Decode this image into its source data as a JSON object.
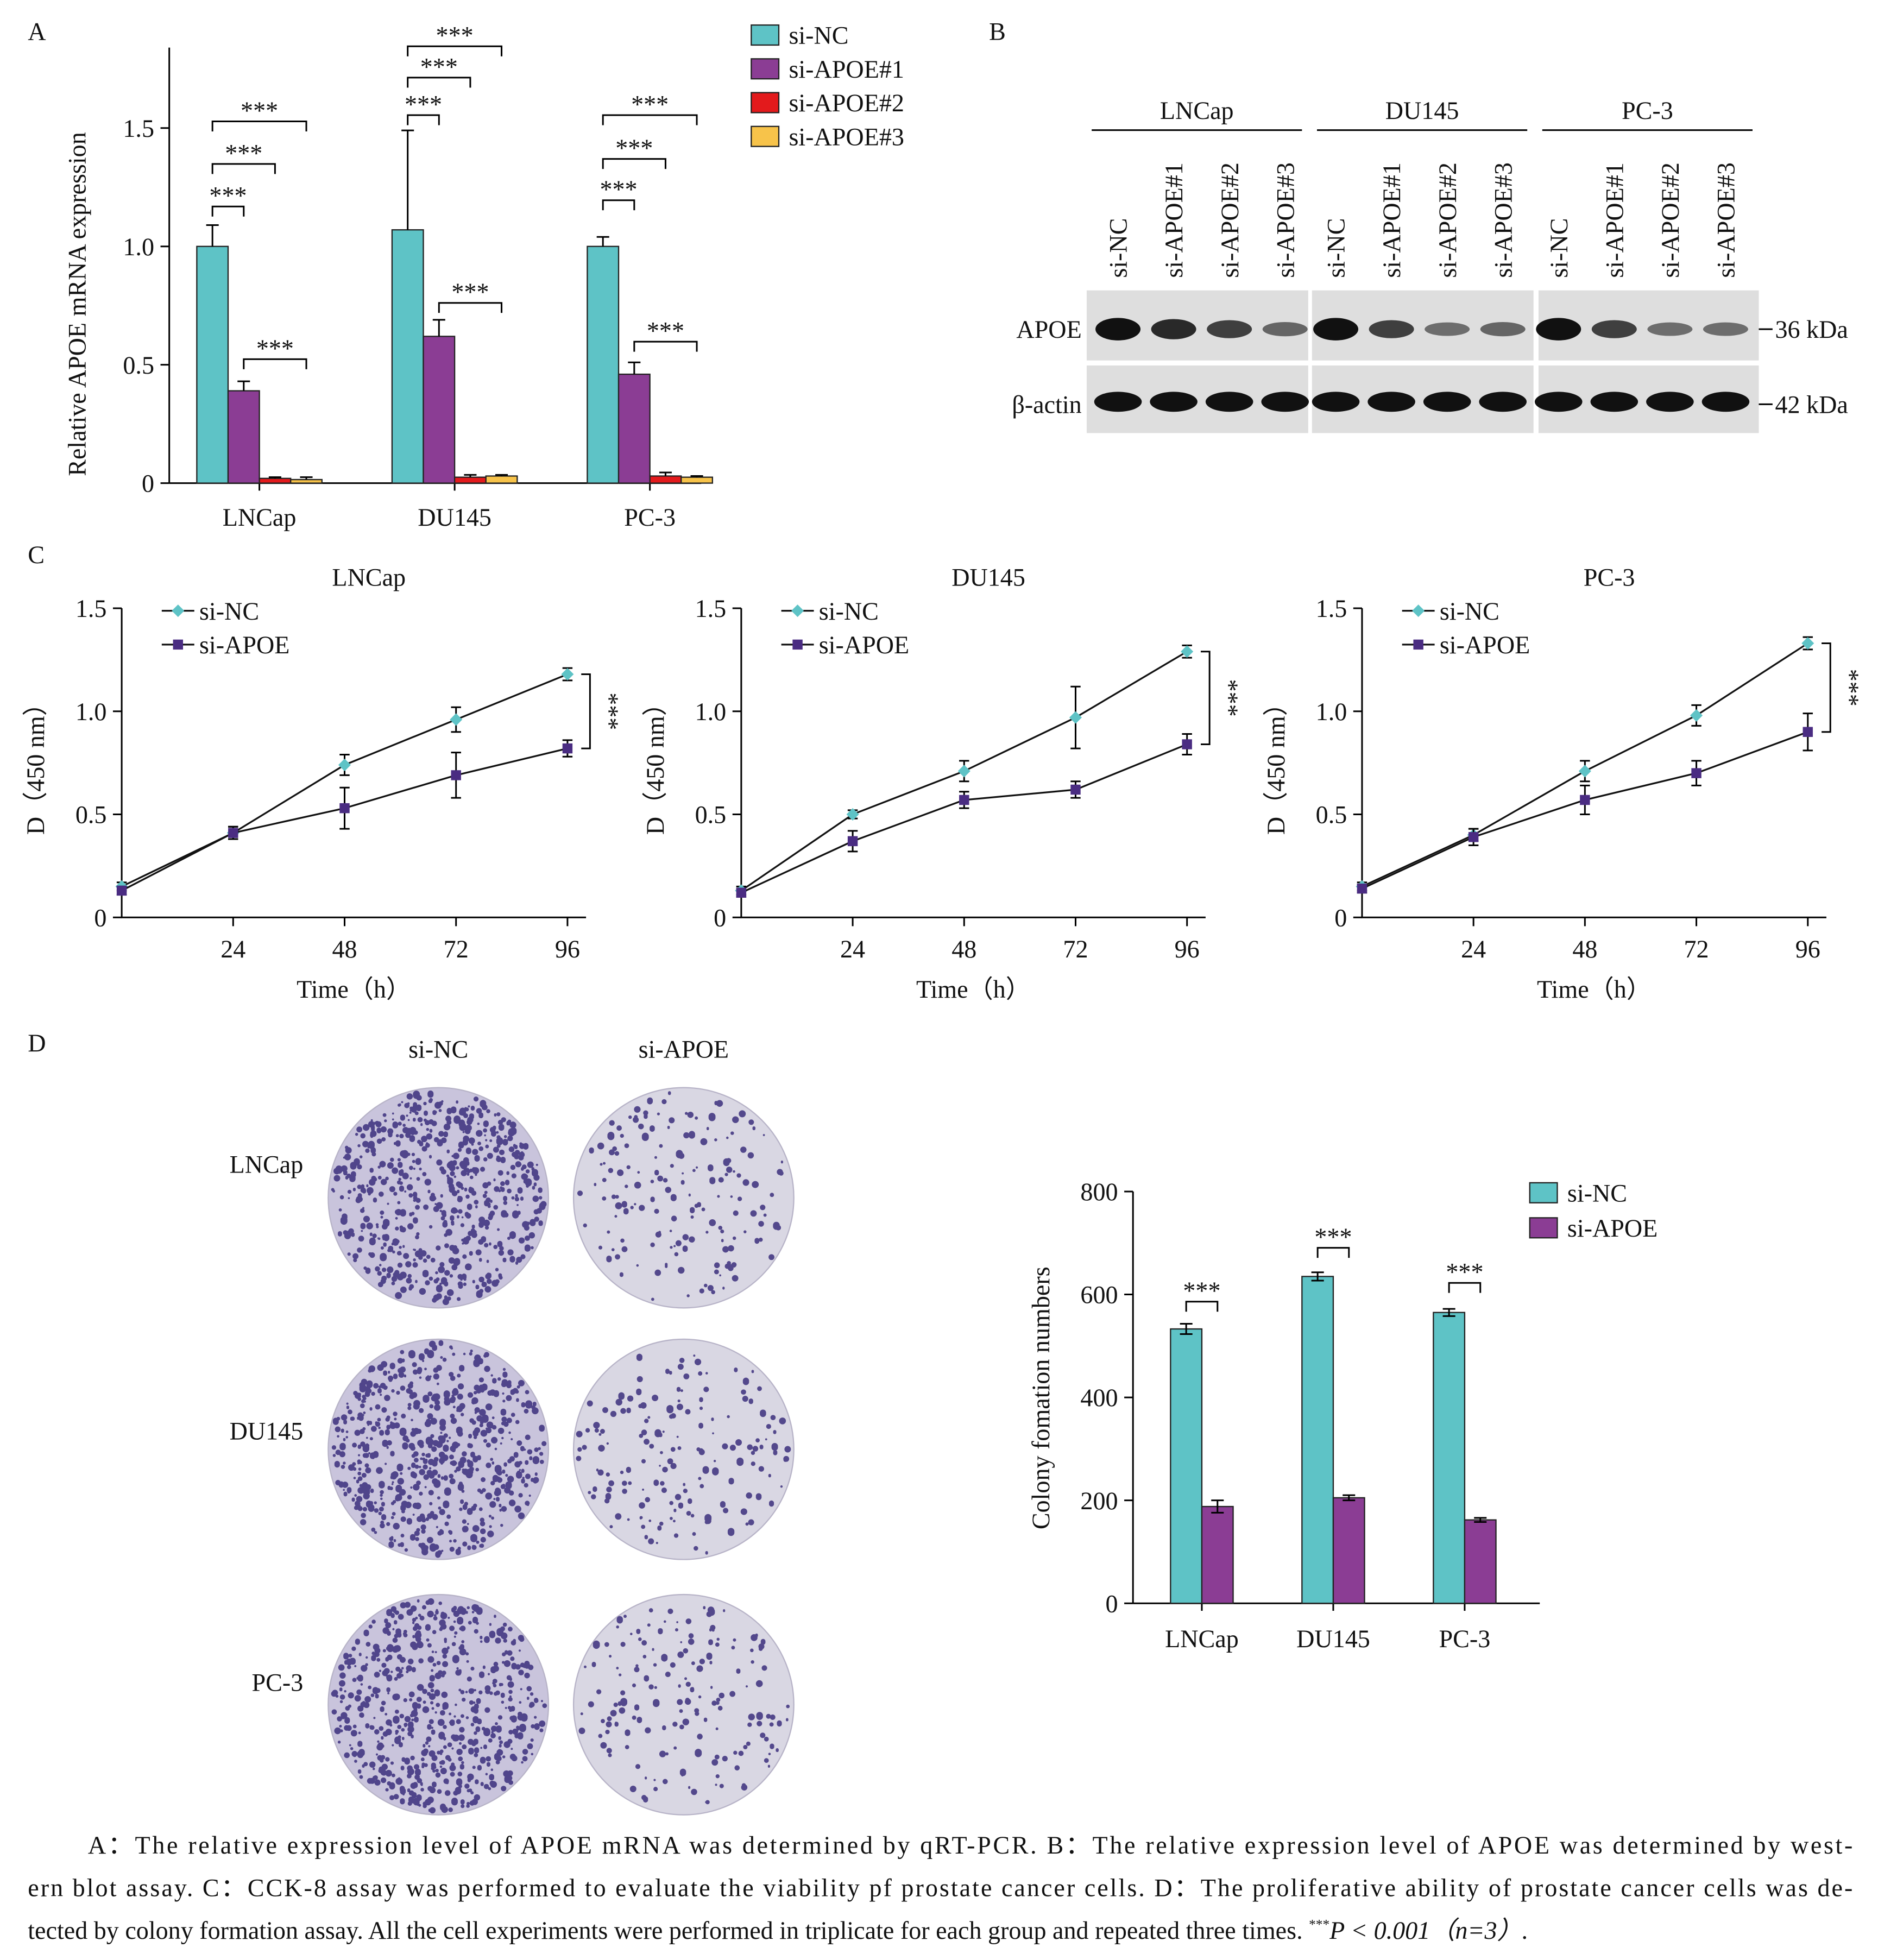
{
  "panel_labels": [
    "A",
    "B",
    "C",
    "D"
  ],
  "chart_data": [
    {
      "type": "bar",
      "y_label": "Relative APOE mRNA expression",
      "categories": [
        "LNCap",
        "DU145",
        "PC-3"
      ],
      "series": [
        {
          "name": "si-NC",
          "color": "#5ec3c6",
          "values": [
            1.0,
            1.07,
            1.0
          ],
          "errors": [
            0.09,
            0.42,
            0.04
          ]
        },
        {
          "name": "si-APOE#1",
          "color": "#8b3d94",
          "values": [
            0.39,
            0.62,
            0.46
          ],
          "errors": [
            0.04,
            0.07,
            0.05
          ]
        },
        {
          "name": "si-APOE#2",
          "color": "#e31a1c",
          "values": [
            0.02,
            0.025,
            0.03
          ],
          "errors": [
            0.005,
            0.01,
            0.015
          ]
        },
        {
          "name": "si-APOE#3",
          "color": "#f7c34a",
          "values": [
            0.015,
            0.03,
            0.025
          ],
          "errors": [
            0.01,
            0.005,
            0.005
          ]
        }
      ],
      "ylim": [
        0,
        1.84
      ],
      "yticks": [
        0,
        0.5,
        {
          "value": 1,
          "label": "1.0"
        },
        1.5
      ],
      "annotations": [
        "***",
        "***",
        "***",
        "***",
        "***",
        "***",
        "***",
        "***",
        "***",
        "***",
        "***",
        "***"
      ]
    },
    {
      "type": "line",
      "title": "LNCap",
      "x_label": "Time（h）",
      "y_label": "D（450 nm）",
      "x": [
        0,
        24,
        48,
        72,
        96
      ],
      "series": [
        {
          "name": "si-NC",
          "color": "#5ec3c6",
          "values": [
            0.15,
            0.41,
            0.74,
            0.96,
            1.18
          ],
          "errors": [
            0.02,
            0.03,
            0.05,
            0.06,
            0.03
          ]
        },
        {
          "name": "si-APOE",
          "color": "#4a2c82",
          "values": [
            0.13,
            0.41,
            0.53,
            0.69,
            0.82
          ],
          "errors": [
            0.02,
            0.03,
            0.1,
            0.11,
            0.04
          ]
        }
      ],
      "xlim": [
        0,
        100
      ],
      "xticks": [
        24,
        48,
        72,
        96
      ],
      "ylim": [
        0,
        1.5
      ],
      "yticks": [
        0,
        0.5,
        {
          "value": 1,
          "label": "1.0"
        },
        1.5
      ],
      "annotations": [
        "***"
      ]
    },
    {
      "type": "line",
      "title": "DU145",
      "x_label": "Time（h）",
      "y_label": "D（450 nm）",
      "x": [
        0,
        24,
        48,
        72,
        96
      ],
      "series": [
        {
          "name": "si-NC",
          "color": "#5ec3c6",
          "values": [
            0.13,
            0.5,
            0.71,
            0.97,
            1.29
          ],
          "errors": [
            0.02,
            0.02,
            0.05,
            0.15,
            0.03
          ]
        },
        {
          "name": "si-APOE",
          "color": "#4a2c82",
          "values": [
            0.12,
            0.37,
            0.57,
            0.62,
            0.84
          ],
          "errors": [
            0.02,
            0.05,
            0.04,
            0.04,
            0.05
          ]
        }
      ],
      "xlim": [
        0,
        100
      ],
      "xticks": [
        24,
        48,
        72,
        96
      ],
      "ylim": [
        0,
        1.5
      ],
      "yticks": [
        0,
        0.5,
        {
          "value": 1,
          "label": "1.0"
        },
        1.5
      ],
      "annotations": [
        "***"
      ]
    },
    {
      "type": "line",
      "title": "PC-3",
      "x_label": "Time（h）",
      "y_label": "D（450 nm）",
      "x": [
        0,
        24,
        48,
        72,
        96
      ],
      "series": [
        {
          "name": "si-NC",
          "color": "#5ec3c6",
          "values": [
            0.15,
            0.4,
            0.71,
            0.98,
            1.33
          ],
          "errors": [
            0.02,
            0.03,
            0.05,
            0.05,
            0.03
          ]
        },
        {
          "name": "si-APOE",
          "color": "#4a2c82",
          "values": [
            0.14,
            0.39,
            0.57,
            0.7,
            0.9
          ],
          "errors": [
            0.02,
            0.04,
            0.07,
            0.06,
            0.09
          ]
        }
      ],
      "xlim": [
        0,
        100
      ],
      "xticks": [
        24,
        48,
        72,
        96
      ],
      "ylim": [
        0,
        1.5
      ],
      "yticks": [
        0,
        0.5,
        {
          "value": 1,
          "label": "1.0"
        },
        1.5
      ],
      "annotations": [
        "***"
      ]
    },
    {
      "type": "bar",
      "y_label": "Colony fomation numbers",
      "categories": [
        "LNCap",
        "DU145",
        "PC-3"
      ],
      "series": [
        {
          "name": "si-NC",
          "color": "#5ec3c6",
          "values": [
            533,
            635,
            565
          ],
          "errors": [
            10,
            8,
            7
          ]
        },
        {
          "name": "si-APOE",
          "color": "#8b3d94",
          "values": [
            188,
            205,
            162
          ],
          "errors": [
            12,
            5,
            4
          ]
        }
      ],
      "ylim": [
        0,
        800
      ],
      "yticks": [
        0,
        200,
        400,
        600,
        800
      ],
      "annotations": [
        "***",
        "***",
        "***"
      ]
    }
  ],
  "western_blot": {
    "groups": [
      {
        "name": "LNCap",
        "lanes": [
          "si-NC",
          "si-APOE#1",
          "si-APOE#2",
          "si-APOE#3"
        ]
      },
      {
        "name": "DU145",
        "lanes": [
          "si-NC",
          "si-APOE#1",
          "si-APOE#2",
          "si-APOE#3"
        ]
      },
      {
        "name": "PC-3",
        "lanes": [
          "si-NC",
          "si-APOE#1",
          "si-APOE#2",
          "si-APOE#3"
        ]
      }
    ],
    "rows": [
      "APOE",
      "β-actin"
    ],
    "markers": [
      "36 kDa",
      "42 kDa"
    ]
  },
  "colony": {
    "columns": [
      "si-NC",
      "si-APOE"
    ],
    "rows": [
      "LNCap",
      "DU145",
      "PC-3"
    ]
  },
  "caption": {
    "lines": [
      "A：The relative expression level of APOE mRNA was determined by qRT-PCR. B：The relative expression level of APOE was determined by west-",
      "ern blot assay. C：CCK-8 assay was performed to evaluate the viability pf prostate cancer cells. D：The proliferative ability of prostate cancer cells was de-",
      "tected by colony formation assay. All the cell experiments were performed in triplicate for each group and repeated three times. "
    ],
    "superscript": "***",
    "tail": "P < 0.001（n=3）."
  }
}
